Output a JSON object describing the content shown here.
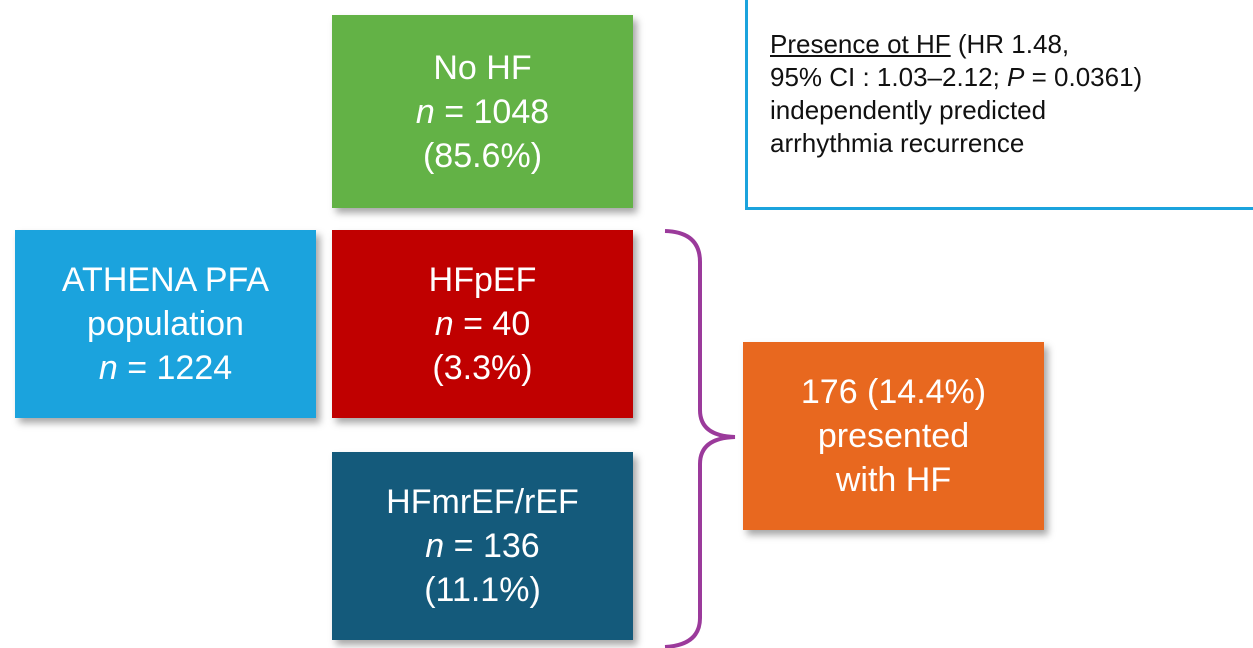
{
  "nodes": [
    {
      "lines": [
        [
          {
            "t": "ATHENA PFA"
          }
        ],
        [
          {
            "t": "population"
          }
        ],
        [
          {
            "t": "n",
            "i": true
          },
          {
            "t": " = 1224"
          }
        ]
      ]
    },
    {
      "lines": [
        [
          {
            "t": "No HF"
          }
        ],
        [
          {
            "t": "n",
            "i": true
          },
          {
            "t": " = 1048"
          }
        ],
        [
          {
            "t": "(85.6%)"
          }
        ]
      ]
    },
    {
      "lines": [
        [
          {
            "t": "HFpEF"
          }
        ],
        [
          {
            "t": "n",
            "i": true
          },
          {
            "t": " = 40"
          }
        ],
        [
          {
            "t": "(3.3%)"
          }
        ]
      ]
    },
    {
      "lines": [
        [
          {
            "t": "HFmrEF/rEF"
          }
        ],
        [
          {
            "t": "n",
            "i": true
          },
          {
            "t": " = 136"
          }
        ],
        [
          {
            "t": "(11.1%)"
          }
        ]
      ]
    },
    {
      "lines": [
        [
          {
            "t": "176 (14.4%)"
          }
        ],
        [
          {
            "t": "presented"
          }
        ],
        [
          {
            "t": "with HF"
          }
        ]
      ]
    }
  ],
  "note": {
    "lines": [
      [
        {
          "t": "Presence ot HF",
          "u": true
        },
        {
          "t": " (HR 1.48,"
        }
      ],
      [
        {
          "t": "95% CI : 1.03–2.12; "
        },
        {
          "t": "P",
          "i": true
        },
        {
          "t": " = 0.0361)"
        }
      ],
      [
        {
          "t": "independently predicted"
        }
      ],
      [
        {
          "t": "arrhythmia recurrence"
        }
      ]
    ]
  }
}
